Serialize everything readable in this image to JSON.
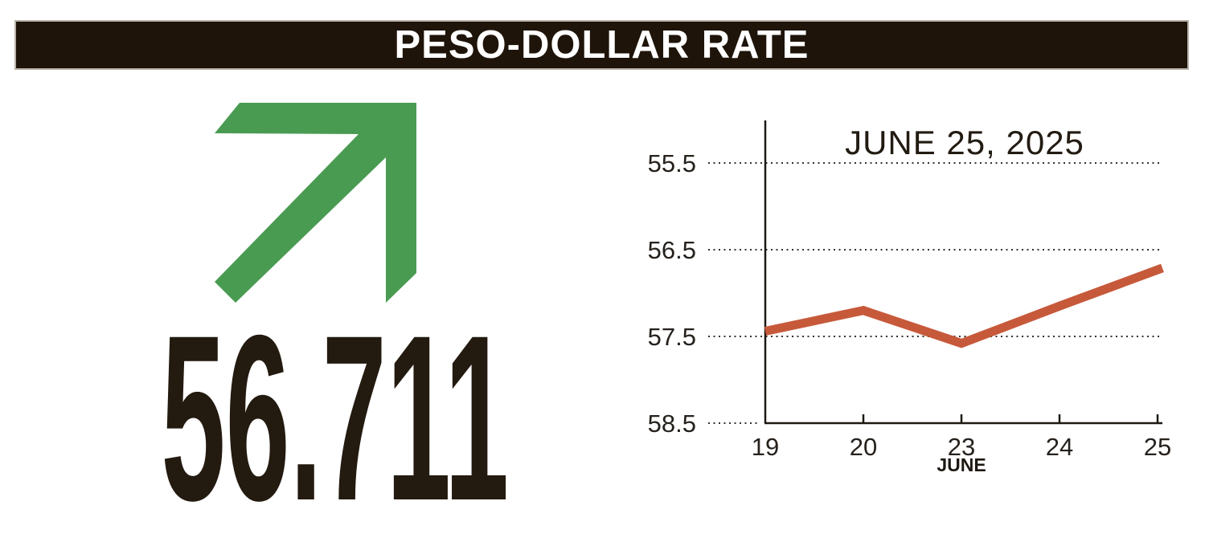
{
  "header": {
    "title": "PESO-DOLLAR RATE"
  },
  "indicator": {
    "value": "56.711",
    "direction": "up",
    "arrow_icon": "up-right-arrow",
    "arrow_color": "#4a9b52",
    "value_color": "#231a10"
  },
  "chart_data": {
    "type": "line",
    "title": "JUNE 25, 2025",
    "xlabel": "JUNE",
    "ylabel": "",
    "categories": [
      "19",
      "20",
      "23",
      "24",
      "25"
    ],
    "series": [
      {
        "name": "peso-dollar rate",
        "values": [
          57.44,
          57.2,
          57.58,
          57.15,
          56.711
        ]
      }
    ],
    "yticks": [
      "55.5",
      "56.5",
      "57.5",
      "58.5"
    ],
    "ylim": [
      55.5,
      58.5
    ],
    "y_axis_inverted": true,
    "grid": "dotted-horizontal",
    "legend": "none",
    "line_color": "#c7593b",
    "axis_color": "#1d1812",
    "text_color": "#26211c"
  }
}
